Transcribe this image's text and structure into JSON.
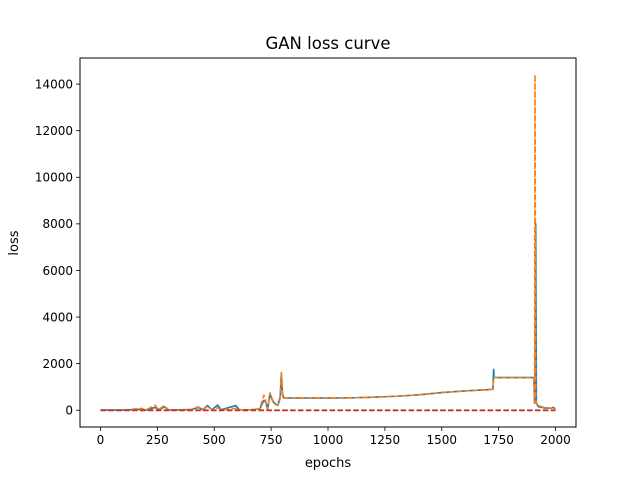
{
  "chart_data": {
    "type": "line",
    "title": "GAN loss curve",
    "xlabel": "epochs",
    "ylabel": "loss",
    "xlim": [
      -90,
      2090
    ],
    "ylim": [
      -720,
      15120
    ],
    "xticks": [
      0,
      250,
      500,
      750,
      1000,
      1250,
      1500,
      1750,
      2000
    ],
    "yticks": [
      0,
      2000,
      4000,
      6000,
      8000,
      10000,
      12000,
      14000
    ],
    "grid": false,
    "legend": "none",
    "series": [
      {
        "color": "#1f77b4",
        "style": "solid",
        "points": [
          [
            0,
            5
          ],
          [
            100,
            8
          ],
          [
            180,
            40
          ],
          [
            200,
            10
          ],
          [
            240,
            120
          ],
          [
            260,
            10
          ],
          [
            280,
            150
          ],
          [
            300,
            10
          ],
          [
            400,
            30
          ],
          [
            430,
            120
          ],
          [
            450,
            20
          ],
          [
            470,
            200
          ],
          [
            490,
            20
          ],
          [
            515,
            220
          ],
          [
            530,
            20
          ],
          [
            595,
            200
          ],
          [
            610,
            20
          ],
          [
            660,
            20
          ],
          [
            700,
            50
          ],
          [
            718,
            420
          ],
          [
            726,
            350
          ],
          [
            735,
            40
          ],
          [
            745,
            720
          ],
          [
            752,
            500
          ],
          [
            760,
            350
          ],
          [
            770,
            250
          ],
          [
            780,
            200
          ],
          [
            790,
            600
          ],
          [
            795,
            1600
          ],
          [
            800,
            700
          ],
          [
            805,
            520
          ],
          [
            900,
            520
          ],
          [
            1000,
            520
          ],
          [
            1100,
            530
          ],
          [
            1200,
            560
          ],
          [
            1300,
            600
          ],
          [
            1400,
            660
          ],
          [
            1500,
            760
          ],
          [
            1600,
            830
          ],
          [
            1700,
            880
          ],
          [
            1725,
            900
          ],
          [
            1728,
            1750
          ],
          [
            1730,
            1400
          ],
          [
            1800,
            1400
          ],
          [
            1850,
            1400
          ],
          [
            1905,
            1400
          ],
          [
            1908,
            300
          ],
          [
            1910,
            1100
          ],
          [
            1913,
            8000
          ],
          [
            1916,
            300
          ],
          [
            1925,
            150
          ],
          [
            1950,
            100
          ],
          [
            1980,
            80
          ],
          [
            1990,
            120
          ],
          [
            2000,
            50
          ]
        ]
      },
      {
        "color": "#ff7f0e",
        "style": "dashed",
        "points": [
          [
            0,
            5
          ],
          [
            100,
            8
          ],
          [
            180,
            80
          ],
          [
            200,
            10
          ],
          [
            240,
            220
          ],
          [
            255,
            20
          ],
          [
            280,
            200
          ],
          [
            300,
            10
          ],
          [
            400,
            30
          ],
          [
            430,
            150
          ],
          [
            450,
            20
          ],
          [
            470,
            150
          ],
          [
            490,
            20
          ],
          [
            515,
            100
          ],
          [
            530,
            20
          ],
          [
            595,
            80
          ],
          [
            610,
            20
          ],
          [
            660,
            20
          ],
          [
            700,
            60
          ],
          [
            718,
            650
          ],
          [
            726,
            400
          ],
          [
            735,
            40
          ],
          [
            745,
            750
          ],
          [
            752,
            550
          ],
          [
            760,
            380
          ],
          [
            770,
            280
          ],
          [
            780,
            200
          ],
          [
            790,
            500
          ],
          [
            795,
            1650
          ],
          [
            800,
            700
          ],
          [
            805,
            520
          ],
          [
            900,
            520
          ],
          [
            1000,
            520
          ],
          [
            1100,
            530
          ],
          [
            1200,
            560
          ],
          [
            1300,
            600
          ],
          [
            1400,
            660
          ],
          [
            1500,
            760
          ],
          [
            1600,
            830
          ],
          [
            1700,
            880
          ],
          [
            1725,
            900
          ],
          [
            1728,
            1350
          ],
          [
            1730,
            1400
          ],
          [
            1800,
            1400
          ],
          [
            1850,
            1400
          ],
          [
            1905,
            1400
          ],
          [
            1908,
            300
          ],
          [
            1910,
            14400
          ],
          [
            1913,
            500
          ],
          [
            1916,
            280
          ],
          [
            1925,
            200
          ],
          [
            1950,
            120
          ],
          [
            1980,
            90
          ],
          [
            1990,
            130
          ],
          [
            2000,
            60
          ]
        ]
      },
      {
        "color": "#2ca02c",
        "style": "dashed",
        "points": [
          [
            0,
            0
          ],
          [
            2000,
            0
          ]
        ]
      },
      {
        "color": "#d62728",
        "style": "dashed",
        "points": [
          [
            0,
            -10
          ],
          [
            2000,
            -10
          ]
        ]
      }
    ]
  }
}
